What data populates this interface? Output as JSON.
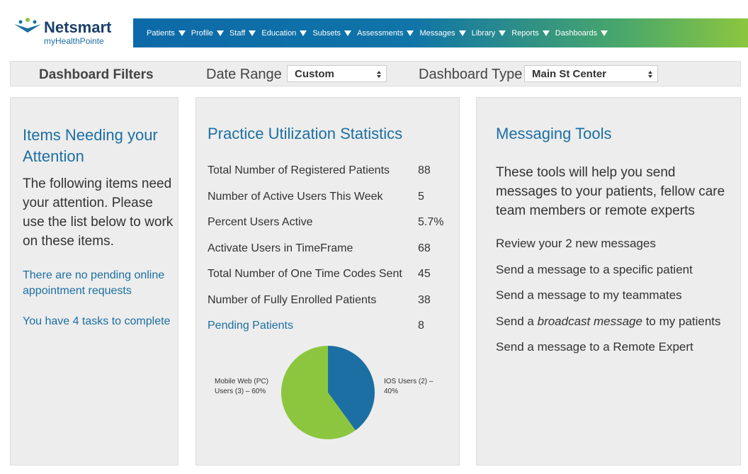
{
  "header": {
    "brand": "Netsmart",
    "sub_brand": "myHealthPointe",
    "nav": [
      "Patients",
      "Profile",
      "Staff",
      "Education",
      "Subsets",
      "Assessments",
      "Messages",
      "Library",
      "Reports",
      "Dashboards"
    ]
  },
  "filters": {
    "title": "Dashboard Filters",
    "date_range_label": "Date Range",
    "date_range_value": "Custom",
    "type_label": "Dashboard Type",
    "type_value": "Main St Center"
  },
  "attention": {
    "title": "Items Needing your Attention",
    "intro": "The following items need your attention. Please use the list below to work on these items.",
    "links": [
      "There are no pending online appointment requests",
      "You have 4 tasks to complete"
    ]
  },
  "stats": {
    "title": "Practice Utilization Statistics",
    "rows": [
      [
        "Total Number of Registered Patients",
        88
      ],
      [
        "Number of Active Users This Week",
        5
      ],
      [
        "Percent Users Active",
        "5.7%"
      ],
      [
        "Activate Users in TimeFrame",
        68
      ],
      [
        "Total Number of One Time Codes Sent",
        45
      ],
      [
        "Number of Fully Enrolled Patients",
        38
      ],
      [
        "Pending Patients",
        8
      ]
    ],
    "pie": {
      "slices": [
        {
          "label": "IOS Users (2) – 40%",
          "value": 40,
          "color": "#1c6fa3"
        },
        {
          "label": "Mobile Web (PC) Users (3) – 60%",
          "value": 60,
          "color": "#8cc63f"
        }
      ]
    }
  },
  "messaging": {
    "title": "Messaging Tools",
    "intro": "These tools will help you send messages to your patients, fellow care team members or remote experts",
    "links": [
      "Review your 2 new messages",
      "Send a message to a specific patient",
      "Send a message to my teammates",
      [
        "Send a ",
        "broadcast message",
        " to my patients"
      ],
      "Send a message to a Remote Expert"
    ]
  }
}
